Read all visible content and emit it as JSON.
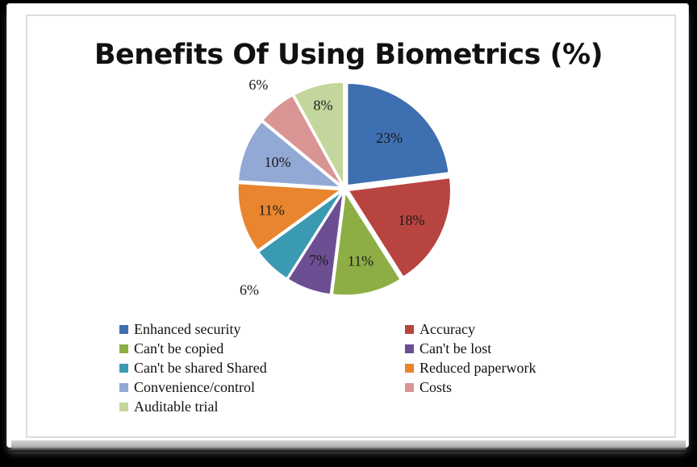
{
  "chart_data": {
    "type": "pie",
    "title": "Benefits Of Using Biometrics (%)",
    "slices": [
      {
        "name": "Enhanced security",
        "value": 23,
        "label": "23%",
        "color": "#3e6fb0"
      },
      {
        "name": "Accuracy",
        "value": 18,
        "label": "18%",
        "color": "#b84440"
      },
      {
        "name": "Can't be copied",
        "value": 11,
        "label": "11%",
        "color": "#8dae45"
      },
      {
        "name": "Can't be lost",
        "value": 7,
        "label": "7%",
        "color": "#6c4f93"
      },
      {
        "name": "Can't be shared Shared",
        "value": 6,
        "label": "6%",
        "color": "#3a9ab1"
      },
      {
        "name": "Reduced paperwork",
        "value": 11,
        "label": "11%",
        "color": "#e8852e"
      },
      {
        "name": "Convenience/control",
        "value": 10,
        "label": "10%",
        "color": "#93a9d5"
      },
      {
        "name": "Costs",
        "value": 6,
        "label": "6%",
        "color": "#d99594"
      },
      {
        "name": "Auditable trial",
        "value": 8,
        "label": "8%",
        "color": "#c3d69b"
      }
    ],
    "legend_placement": "bottom"
  }
}
